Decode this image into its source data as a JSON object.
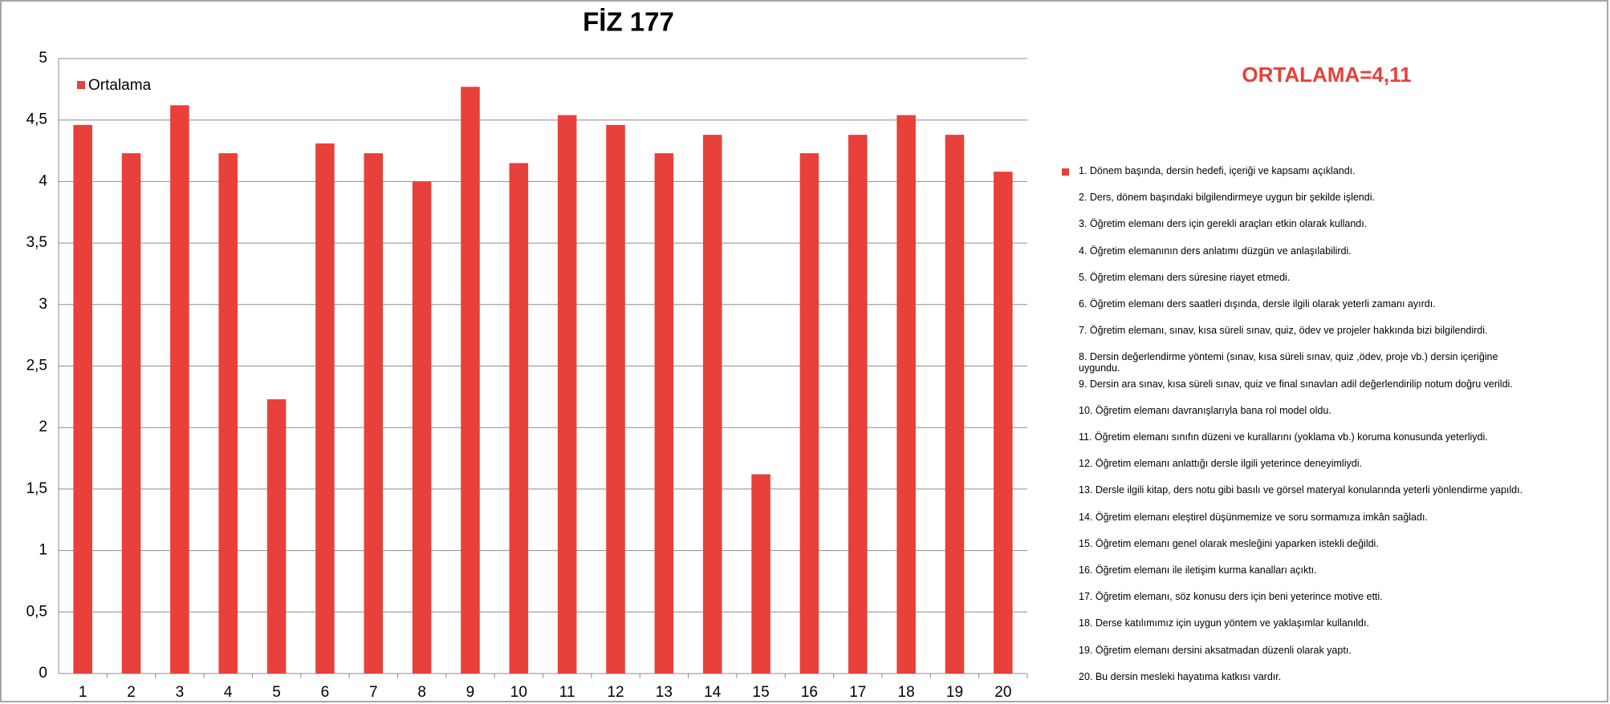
{
  "chart_data": {
    "type": "bar",
    "title": "FİZ 177",
    "categories": [
      "1",
      "2",
      "3",
      "4",
      "5",
      "6",
      "7",
      "8",
      "9",
      "10",
      "11",
      "12",
      "13",
      "14",
      "15",
      "16",
      "17",
      "18",
      "19",
      "20"
    ],
    "series": [
      {
        "name": "Ortalama",
        "color": "#e8403a",
        "values": [
          4.46,
          4.23,
          4.62,
          4.23,
          2.23,
          4.31,
          4.23,
          4.0,
          4.77,
          4.15,
          4.54,
          4.46,
          4.23,
          4.38,
          1.62,
          4.23,
          4.38,
          4.54,
          4.38,
          4.08
        ]
      }
    ],
    "ylim": [
      0,
      5
    ],
    "yticks": [
      0,
      {
        "value": 0.5,
        "label": "0,5"
      },
      1,
      {
        "value": 1.5,
        "label": "1,5"
      },
      2,
      {
        "value": 2.5,
        "label": "2,5"
      },
      3,
      {
        "value": 3.5,
        "label": "3,5"
      },
      4,
      {
        "value": 4.5,
        "label": "4,5"
      },
      5
    ],
    "grid": true,
    "legend": "upper left",
    "annotation": "ORTALAMA=4,11",
    "category_notes": [
      "1. Dönem başında, dersin hedefi, içeriği ve kapsamı açıklandı.",
      "2. Ders, dönem başındaki bilgilendirmeye uygun bir şekilde işlendi.",
      "3. Öğretim elemanı ders için gerekli araçları etkin olarak kullandı.",
      "4. Öğretim elemanının ders anlatımı düzgün ve anlaşılabilirdi.",
      "5. Öğretim elemanı ders süresine riayet etmedi.",
      "6. Öğretim elemanı ders saatleri dışında, dersle ilgili olarak yeterli zamanı ayırdı.",
      "7. Öğretim elemanı, sınav, kısa süreli sınav, quiz, ödev ve projeler hakkında bizi bilgilendirdi.",
      "8. Dersin değerlendirme yöntemi (sınav,  kısa süreli sınav, quiz ,ödev, proje vb.) dersin içeriğine uygundu.",
      "9. Dersin ara sınav, kısa süreli sınav, quiz  ve final sınavları adil değerlendirilip notum doğru verildi.",
      "10. Öğretim elemanı davranışlarıyla bana rol model oldu.",
      "11. Öğretim elemanı sınıfın düzeni ve kurallarını (yoklama vb.) koruma konusunda yeterliydi.",
      "12. Öğretim elemanı anlattığı dersle ilgili yeterince deneyimliydi.",
      "13. Dersle ilgili kitap, ders notu gibi basılı ve görsel materyal konularında yeterli yönlendirme yapıldı.",
      "14. Öğretim elemanı eleştirel düşünmemize ve soru sormamıza imkân sağladı.",
      "15. Öğretim elemanı genel olarak mesleğini yaparken istekli değildi.",
      "16. Öğretim elemanı ile iletişim kurma kanalları açıktı.",
      "17. Öğretim elemanı, söz konusu ders için beni yeterince motive etti.",
      "18. Derse katılımımız için uygun yöntem ve yaklaşımlar kullanıldı.",
      "19. Öğretim elemanı dersini aksatmadan düzenli olarak yaptı.",
      "20. Bu dersin mesleki hayatıma katkısı vardır."
    ]
  }
}
